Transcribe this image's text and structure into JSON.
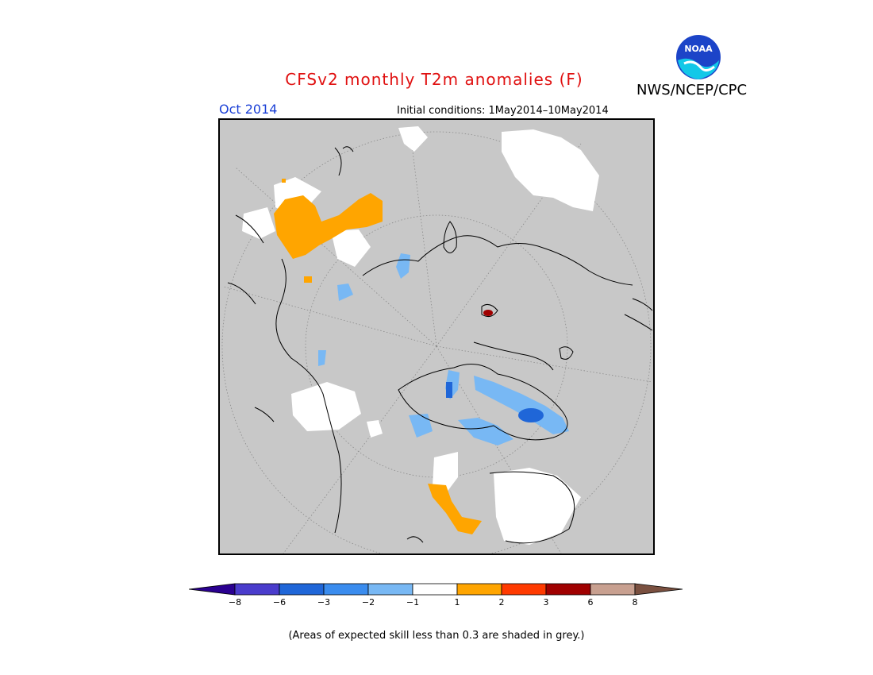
{
  "header": {
    "title": "CFSv2 monthly T2m anomalies (F)",
    "agency": "NWS/NCEP/CPC",
    "logo_text": "NOAA",
    "month": "Oct 2014",
    "initial_conditions": "Initial conditions: 1May2014–10May2014"
  },
  "legend": {
    "labels": [
      "−8",
      "−6",
      "−3",
      "−2",
      "−1",
      "1",
      "2",
      "3",
      "6",
      "8"
    ],
    "colors": [
      "#2a0090",
      "#4a3ccc",
      "#1f66d8",
      "#3a8cee",
      "#78b8f4",
      "#ffffff",
      "#ffa500",
      "#ff3a00",
      "#a00000",
      "#c8a090",
      "#7a5040"
    ]
  },
  "map": {
    "grey_color": "#c8c8c8",
    "warm_color": "#ffa500",
    "cool_color": "#78b8f4",
    "strong_cool_color": "#1f66d8",
    "hot_color": "#a00000"
  },
  "footnote": "(Areas of expected skill less than 0.3 are shaded in grey.)"
}
